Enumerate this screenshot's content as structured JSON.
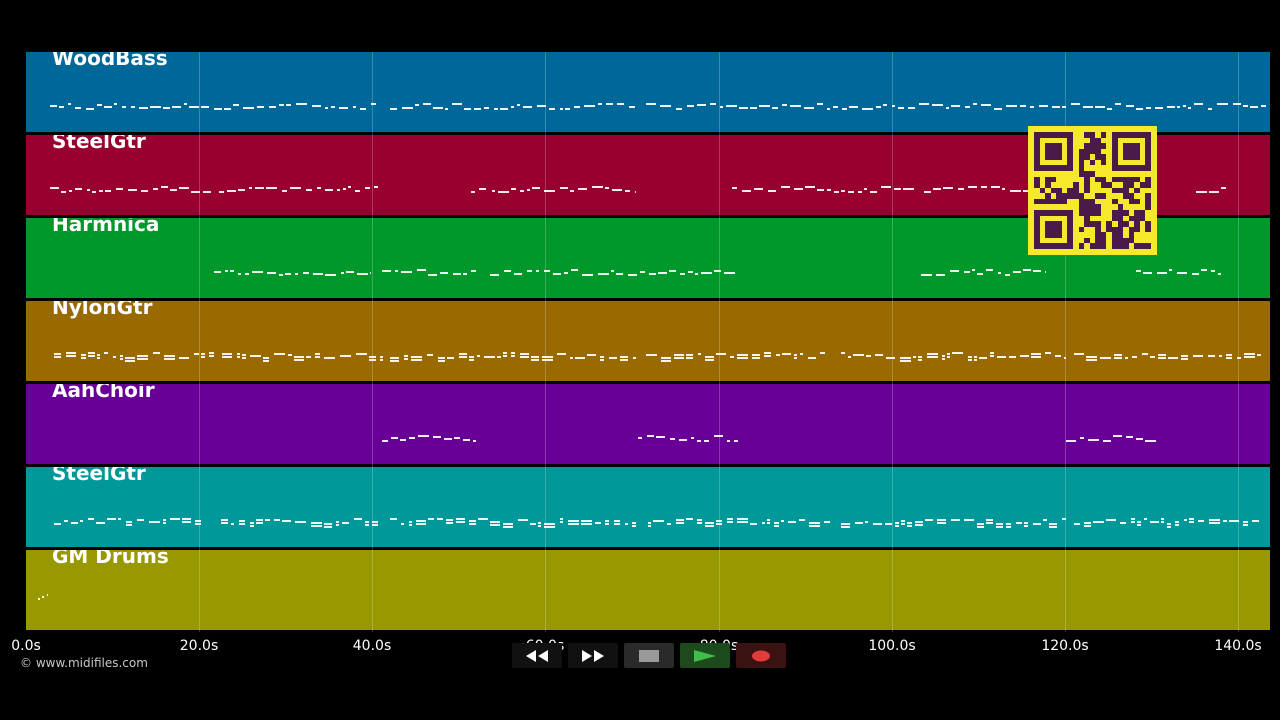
{
  "tracks": [
    {
      "name": "WoodBass",
      "color": "#006898"
    },
    {
      "name": "SteelGtr",
      "color": "#980030"
    },
    {
      "name": "Harmnica",
      "color": "#00982a"
    },
    {
      "name": "NylonGtr",
      "color": "#986a00"
    },
    {
      "name": "AahChoir",
      "color": "#680098"
    },
    {
      "name": "SteelGtr",
      "color": "#009898"
    },
    {
      "name": "GM Drums",
      "color": "#989800"
    }
  ],
  "axis": {
    "ticks": [
      "0.0s",
      "20.0s",
      "40.0s",
      "60.0s",
      "80.0s",
      "100.0s",
      "120.0s",
      "140.0s"
    ]
  },
  "footer": {
    "copyright": "© www.midifiles.com"
  },
  "transport": {
    "rewind_icon": "rewind-icon",
    "fast_forward_icon": "fast-forward-icon",
    "stop_icon": "stop-icon",
    "play_icon": "play-icon",
    "record_icon": "record-icon"
  },
  "colors": {
    "background": "#000000",
    "play": "#3fbf4a",
    "record": "#e03c3c",
    "qr": "#f6e82a",
    "qr_dark": "#4a1a4a"
  }
}
